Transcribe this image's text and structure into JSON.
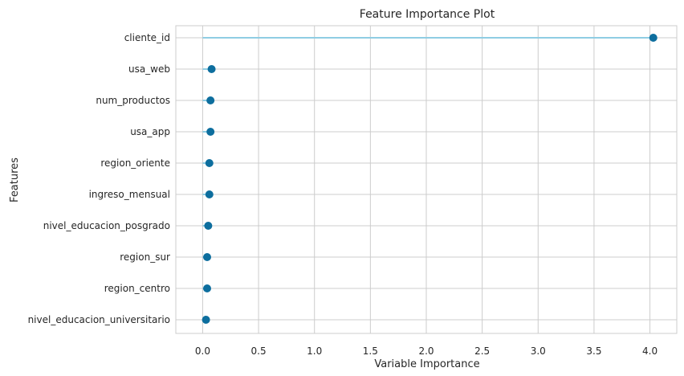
{
  "chart_data": {
    "type": "lollipop",
    "title": "Feature Importance Plot",
    "xlabel": "Variable Importance",
    "ylabel": "Features",
    "categories": [
      "cliente_id",
      "usa_web",
      "num_productos",
      "usa_app",
      "region_oriente",
      "ingreso_mensual",
      "nivel_educacion_posgrado",
      "region_sur",
      "region_centro",
      "nivel_educacion_universitario"
    ],
    "values": [
      4.03,
      0.08,
      0.07,
      0.07,
      0.06,
      0.06,
      0.05,
      0.04,
      0.04,
      0.03
    ],
    "xlim": [
      -0.24,
      4.24
    ],
    "xticks": [
      0.0,
      0.5,
      1.0,
      1.5,
      2.0,
      2.5,
      3.0,
      3.5,
      4.0
    ],
    "xtick_labels": [
      "0.0",
      "0.5",
      "1.0",
      "1.5",
      "2.0",
      "2.5",
      "3.0",
      "3.5",
      "4.0"
    ],
    "grid": true,
    "colors": {
      "stem": "#8fcde3",
      "marker": "#0d6e9e",
      "grid": "#cccccc",
      "text": "#262626"
    }
  }
}
